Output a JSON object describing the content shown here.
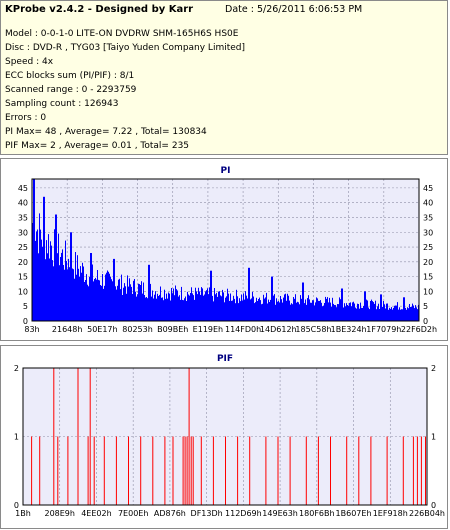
{
  "header": {
    "title": "KProbe v2.4.2 - Designed by Karr",
    "date": "Date : 5/26/2011 6:06:53 PM",
    "lines": [
      "Model : 0-0-1-0 LITE-ON DVDRW SHM-165H6S HS0E",
      "Disc : DVD-R , TYG03 [Taiyo Yuden Company Limited]",
      "Speed : 4x",
      "ECC blocks sum (PI/PIF) : 8/1",
      "Scanned range : 0 - 2293759",
      "Sampling count : 126943",
      "Errors : 0",
      "PI Max= 48 , Average= 7.22 , Total= 130834",
      "PIF Max= 2 , Average= 0.01 , Total= 235"
    ]
  },
  "colors": {
    "pi": "#0000ff",
    "pif": "#ff0000",
    "plot_bg": "#ececfa",
    "grid": "#9090a8"
  },
  "chart_data": [
    {
      "type": "bar",
      "title": "PI",
      "ylim": [
        0,
        48
      ],
      "yticks": [
        0,
        5,
        10,
        15,
        20,
        25,
        30,
        35,
        40,
        45
      ],
      "xticks": [
        "83h",
        "21648h",
        "50E17h",
        "80253h",
        "B09BEh",
        "E119Eh",
        "114FD0h",
        "14D612h",
        "185C58h",
        "1BE324h",
        "1F7079h",
        "22F6D2h"
      ],
      "grid": true,
      "envelope": [
        [
          0,
          43
        ],
        [
          0.02,
          38
        ],
        [
          0.05,
          33
        ],
        [
          0.08,
          28
        ],
        [
          0.12,
          23
        ],
        [
          0.16,
          19
        ],
        [
          0.2,
          17
        ],
        [
          0.26,
          15
        ],
        [
          0.32,
          13
        ],
        [
          0.4,
          12
        ],
        [
          0.5,
          11
        ],
        [
          0.6,
          10
        ],
        [
          0.7,
          9
        ],
        [
          0.8,
          8
        ],
        [
          0.9,
          7
        ],
        [
          1.0,
          6
        ]
      ],
      "spikes": [
        [
          0.005,
          48
        ],
        [
          0.03,
          42
        ],
        [
          0.06,
          36
        ],
        [
          0.1,
          30
        ],
        [
          0.15,
          23
        ],
        [
          0.21,
          21
        ],
        [
          0.3,
          19
        ],
        [
          0.46,
          17
        ],
        [
          0.56,
          18
        ],
        [
          0.62,
          15
        ],
        [
          0.7,
          13
        ],
        [
          0.8,
          11
        ],
        [
          0.86,
          10
        ],
        [
          0.9,
          9
        ],
        [
          0.96,
          8
        ]
      ]
    },
    {
      "type": "bar",
      "title": "PIF",
      "ylim": [
        0,
        2
      ],
      "yticks": [
        0,
        1,
        2
      ],
      "xticks": [
        "1Bh",
        "208E9h",
        "4EE02h",
        "7E00Eh",
        "AD876h",
        "DF13Dh",
        "112D69h",
        "149E63h",
        "180F6Bh",
        "1B607Eh",
        "1EF918h",
        "226B04h"
      ],
      "grid": true,
      "bars": [
        [
          0.02,
          1
        ],
        [
          0.04,
          1
        ],
        [
          0.075,
          2
        ],
        [
          0.085,
          1
        ],
        [
          0.11,
          1
        ],
        [
          0.135,
          2
        ],
        [
          0.16,
          1
        ],
        [
          0.165,
          2
        ],
        [
          0.175,
          1
        ],
        [
          0.2,
          1
        ],
        [
          0.23,
          1
        ],
        [
          0.26,
          1
        ],
        [
          0.29,
          1
        ],
        [
          0.32,
          1
        ],
        [
          0.35,
          1
        ],
        [
          0.37,
          1
        ],
        [
          0.395,
          1
        ],
        [
          0.4,
          1
        ],
        [
          0.405,
          1
        ],
        [
          0.41,
          2
        ],
        [
          0.415,
          1
        ],
        [
          0.42,
          1
        ],
        [
          0.44,
          1
        ],
        [
          0.47,
          1
        ],
        [
          0.5,
          1
        ],
        [
          0.53,
          1
        ],
        [
          0.56,
          1
        ],
        [
          0.6,
          1
        ],
        [
          0.63,
          1
        ],
        [
          0.66,
          1
        ],
        [
          0.7,
          1
        ],
        [
          0.73,
          1
        ],
        [
          0.76,
          1
        ],
        [
          0.8,
          1
        ],
        [
          0.83,
          1
        ],
        [
          0.86,
          1
        ],
        [
          0.9,
          1
        ],
        [
          0.94,
          1
        ],
        [
          0.965,
          1
        ],
        [
          0.975,
          1
        ],
        [
          0.985,
          1
        ],
        [
          0.995,
          1
        ]
      ]
    }
  ]
}
